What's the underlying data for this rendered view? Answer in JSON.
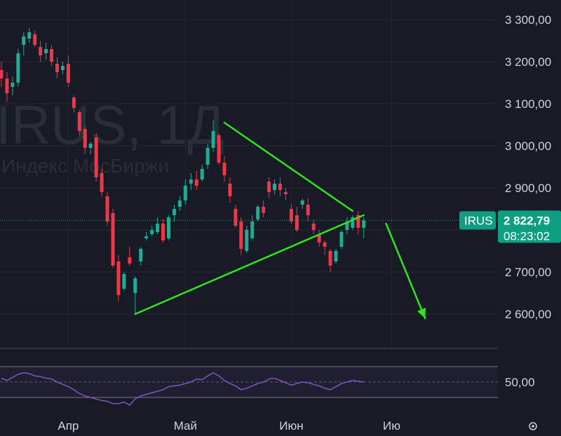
{
  "chart_data": {
    "type": "candlestick",
    "symbol": "IRUS",
    "interval": "1Д",
    "watermark_title": "IRUS, 1Д",
    "watermark_subtitle": "Индекс МосБиржи",
    "price_axis": {
      "ylim": [
        2535,
        3335
      ],
      "ticks": [
        {
          "value": 3300,
          "label": "3 300,00"
        },
        {
          "value": 3200,
          "label": "3 200,00"
        },
        {
          "value": 3100,
          "label": "3 100,00"
        },
        {
          "value": 3000,
          "label": "3 000,00"
        },
        {
          "value": 2900,
          "label": "2 900,00"
        },
        {
          "value": 2700,
          "label": "2 700,00"
        },
        {
          "value": 2600,
          "label": "2 600,00"
        }
      ]
    },
    "time_axis": {
      "labels": [
        {
          "index": 12,
          "label": "Апр"
        },
        {
          "index": 33,
          "label": "Май"
        },
        {
          "index": 52,
          "label": "Июн"
        },
        {
          "index": 70,
          "label": "Ию"
        }
      ]
    },
    "last_price": {
      "value": 2822.79,
      "label": "2 822,79",
      "symbol_label": "IRUS",
      "countdown": "08:23:02"
    },
    "candles": [
      [
        3180,
        3200,
        3140,
        3160
      ],
      [
        3160,
        3175,
        3105,
        3125
      ],
      [
        3140,
        3165,
        3120,
        3150
      ],
      [
        3150,
        3230,
        3140,
        3220
      ],
      [
        3240,
        3270,
        3215,
        3260
      ],
      [
        3255,
        3280,
        3245,
        3270
      ],
      [
        3265,
        3275,
        3235,
        3240
      ],
      [
        3235,
        3250,
        3200,
        3215
      ],
      [
        3220,
        3245,
        3205,
        3230
      ],
      [
        3230,
        3240,
        3190,
        3200
      ],
      [
        3195,
        3210,
        3160,
        3175
      ],
      [
        3180,
        3200,
        3170,
        3190
      ],
      [
        3195,
        3215,
        3140,
        3150
      ],
      [
        3115,
        3120,
        3080,
        3090
      ],
      [
        3080,
        3085,
        3025,
        3035
      ],
      [
        3040,
        3045,
        2980,
        2995
      ],
      [
        2995,
        3010,
        2980,
        3005
      ],
      [
        3020,
        3030,
        2915,
        2925
      ],
      [
        2935,
        2945,
        2880,
        2890
      ],
      [
        2880,
        2890,
        2810,
        2820
      ],
      [
        2840,
        2850,
        2710,
        2715
      ],
      [
        2725,
        2740,
        2630,
        2645
      ],
      [
        2660,
        2700,
        2655,
        2695
      ],
      [
        2735,
        2760,
        2715,
        2720
      ],
      [
        2650,
        2690,
        2600,
        2685
      ],
      [
        2725,
        2760,
        2715,
        2755
      ],
      [
        2780,
        2795,
        2775,
        2785
      ],
      [
        2790,
        2810,
        2785,
        2800
      ],
      [
        2795,
        2830,
        2790,
        2815
      ],
      [
        2815,
        2825,
        2770,
        2775
      ],
      [
        2780,
        2835,
        2775,
        2830
      ],
      [
        2835,
        2860,
        2820,
        2850
      ],
      [
        2855,
        2880,
        2845,
        2870
      ],
      [
        2870,
        2920,
        2860,
        2905
      ],
      [
        2910,
        2935,
        2895,
        2920
      ],
      [
        2920,
        2940,
        2895,
        2905
      ],
      [
        2920,
        2955,
        2915,
        2945
      ],
      [
        2955,
        3005,
        2945,
        2995
      ],
      [
        2995,
        3060,
        2985,
        3035
      ],
      [
        3025,
        3030,
        2955,
        2960
      ],
      [
        2960,
        2975,
        2915,
        2930
      ],
      [
        2910,
        2925,
        2865,
        2880
      ],
      [
        2850,
        2860,
        2805,
        2810
      ],
      [
        2820,
        2830,
        2740,
        2755
      ],
      [
        2750,
        2810,
        2745,
        2800
      ],
      [
        2780,
        2835,
        2775,
        2820
      ],
      [
        2825,
        2860,
        2820,
        2855
      ],
      [
        2855,
        2870,
        2830,
        2840
      ],
      [
        2915,
        2925,
        2875,
        2890
      ],
      [
        2895,
        2920,
        2885,
        2910
      ],
      [
        2910,
        2925,
        2880,
        2895
      ],
      [
        2890,
        2900,
        2870,
        2885
      ],
      [
        2850,
        2860,
        2815,
        2820
      ],
      [
        2835,
        2855,
        2795,
        2800
      ],
      [
        2860,
        2875,
        2850,
        2870
      ],
      [
        2860,
        2875,
        2820,
        2835
      ],
      [
        2815,
        2825,
        2790,
        2800
      ],
      [
        2790,
        2800,
        2760,
        2770
      ],
      [
        2770,
        2775,
        2740,
        2760
      ],
      [
        2750,
        2755,
        2700,
        2715
      ],
      [
        2725,
        2755,
        2720,
        2750
      ],
      [
        2760,
        2800,
        2755,
        2795
      ],
      [
        2800,
        2830,
        2790,
        2820
      ],
      [
        2805,
        2835,
        2800,
        2830
      ],
      [
        2835,
        2845,
        2790,
        2805
      ],
      [
        2805,
        2830,
        2780,
        2822.79
      ]
    ],
    "trendlines": [
      {
        "from": [
          24,
          2600
        ],
        "to": [
          65,
          2835
        ]
      },
      {
        "from": [
          40,
          3055
        ],
        "to": [
          63,
          2845
        ]
      }
    ],
    "forecast_arrow": {
      "from": [
        69,
        2815
      ],
      "to": [
        76,
        2590
      ]
    },
    "rsi": {
      "level_label": "50,00",
      "band": [
        30,
        70
      ],
      "values": [
        55,
        52,
        56,
        60,
        62,
        61,
        58,
        57,
        55,
        54,
        50,
        47,
        44,
        40,
        35,
        32,
        30,
        28,
        26,
        25,
        22,
        22,
        24,
        20,
        28,
        32,
        34,
        36,
        38,
        40,
        44,
        45,
        46,
        48,
        50,
        54,
        53,
        58,
        62,
        58,
        52,
        48,
        45,
        40,
        42,
        45,
        48,
        50,
        54,
        55,
        52,
        49,
        46,
        48,
        50,
        49,
        47,
        45,
        42,
        40,
        44,
        48,
        50,
        52,
        51,
        50
      ]
    },
    "colors": {
      "up": "#22ab94",
      "down": "#f23645",
      "trendline": "#2ee51e",
      "arrow": "#2ee51e",
      "tag": "#0e9f82",
      "rsi_line": "#7e57c2",
      "grid": "#232633",
      "pane_divider": "#4a4d59",
      "price_line": "#0e9f82"
    }
  }
}
